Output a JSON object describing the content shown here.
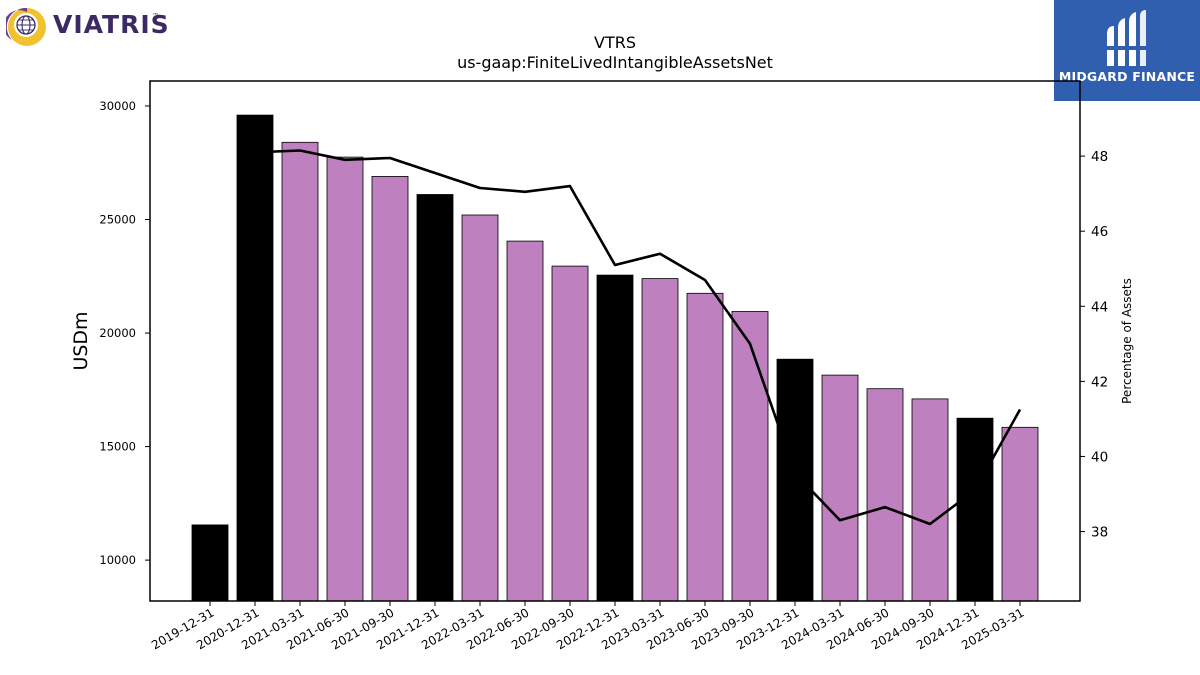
{
  "branding": {
    "company_logo_text": "VIATRIS",
    "company_logo_tm": "™",
    "publisher_logo_text": "MIDGARD FINANCE",
    "colors": {
      "viatris_purple": "#3b2a63",
      "viatris_gold": "#f2c12e",
      "midgard_blue": "#2f5fae"
    }
  },
  "chart_data": {
    "type": "bar",
    "title": "VTRS",
    "subtitle": "us-gaap:FiniteLivedIntangibleAssetsNet",
    "ylabel": "USDm",
    "y2label": "Percentage of Assets",
    "ylim": [
      8200,
      31100
    ],
    "y2lim": [
      36.15,
      50.0
    ],
    "yticks": [
      10000,
      15000,
      20000,
      25000,
      30000
    ],
    "y2ticks": [
      38,
      40,
      42,
      44,
      46,
      48
    ],
    "categories": [
      "2019-12-31",
      "2020-12-31",
      "2021-03-31",
      "2021-06-30",
      "2021-09-30",
      "2021-12-31",
      "2022-03-31",
      "2022-06-30",
      "2022-09-30",
      "2022-12-31",
      "2023-03-31",
      "2023-06-30",
      "2023-09-30",
      "2023-12-31",
      "2024-03-31",
      "2024-06-30",
      "2024-09-30",
      "2024-12-31",
      "2025-03-31"
    ],
    "series": [
      {
        "type": "bar",
        "values": [
          11550,
          29600,
          28400,
          27750,
          26900,
          26100,
          25200,
          24050,
          22950,
          22550,
          22400,
          21750,
          20950,
          18850,
          18150,
          17550,
          17100,
          16250,
          15850
        ],
        "period_types": [
          "annual",
          "annual",
          "quarterly",
          "quarterly",
          "quarterly",
          "annual",
          "quarterly",
          "quarterly",
          "quarterly",
          "annual",
          "quarterly",
          "quarterly",
          "quarterly",
          "annual",
          "quarterly",
          "quarterly",
          "quarterly",
          "annual",
          "quarterly"
        ]
      },
      {
        "type": "line",
        "axis": "right",
        "values": [
          null,
          48.1,
          48.15,
          47.9,
          47.95,
          47.55,
          47.15,
          47.05,
          47.2,
          45.1,
          45.4,
          44.7,
          43.0,
          39.55,
          38.3,
          38.65,
          38.2,
          39.1,
          41.25
        ]
      }
    ],
    "colors": {
      "annual_bar": "#000000",
      "quarterly_bar": "#bf80bf",
      "line": "#000000"
    },
    "grid": false,
    "legend": "none"
  }
}
